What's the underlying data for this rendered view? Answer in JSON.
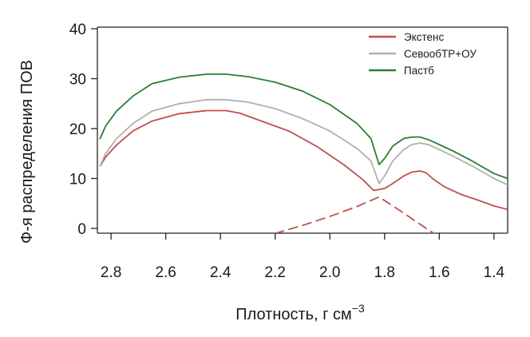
{
  "chart_data": {
    "type": "line",
    "xlabel": "Плотность, г см",
    "xlabel_exponent": "−3",
    "ylabel": "Ф-я распределения ПОВ",
    "xlim": [
      2.85,
      1.35
    ],
    "ylim": [
      0,
      40
    ],
    "x_reversed": true,
    "x_ticks": [
      "2.8",
      "2.6",
      "2.4",
      "2.2",
      "2.0",
      "1.8",
      "1.6",
      "1.4"
    ],
    "y_ticks": [
      "0",
      "10",
      "20",
      "30",
      "40"
    ],
    "grid": false,
    "legend_position": "top-right",
    "series": [
      {
        "name": "Экстенс",
        "color": "#c0504d",
        "x": [
          2.84,
          2.82,
          2.78,
          2.72,
          2.65,
          2.55,
          2.45,
          2.38,
          2.33,
          2.25,
          2.15,
          2.05,
          1.95,
          1.88,
          1.84,
          1.8,
          1.77,
          1.73,
          1.7,
          1.67,
          1.65,
          1.62,
          1.58,
          1.52,
          1.45,
          1.4,
          1.35
        ],
        "y": [
          12.5,
          14.3,
          16.7,
          19.5,
          21.5,
          23.0,
          23.6,
          23.6,
          23.1,
          21.5,
          19.5,
          16.5,
          12.8,
          9.8,
          7.6,
          8.0,
          9.0,
          10.5,
          11.3,
          11.5,
          11.2,
          9.8,
          8.3,
          6.8,
          5.5,
          4.5,
          3.8
        ]
      },
      {
        "name": "",
        "color": "#c0504d",
        "dashed": true,
        "x": [
          2.2,
          2.1,
          2.0,
          1.9,
          1.82,
          1.75,
          1.68,
          1.62
        ],
        "y": [
          -1.0,
          0.6,
          2.4,
          4.4,
          6.3,
          3.8,
          1.2,
          -1.0
        ]
      },
      {
        "name": "СевообТР+ОУ",
        "color": "#b0b0b0",
        "x": [
          2.84,
          2.82,
          2.78,
          2.72,
          2.65,
          2.55,
          2.45,
          2.38,
          2.3,
          2.2,
          2.1,
          2.0,
          1.9,
          1.85,
          1.82,
          1.8,
          1.77,
          1.73,
          1.7,
          1.67,
          1.64,
          1.6,
          1.55,
          1.48,
          1.4,
          1.35
        ],
        "y": [
          12.5,
          15.0,
          18.0,
          21.0,
          23.5,
          25.0,
          25.8,
          25.8,
          25.3,
          24.0,
          22.0,
          19.5,
          16.0,
          13.5,
          9.0,
          10.5,
          13.5,
          15.8,
          16.8,
          17.1,
          16.8,
          15.8,
          14.5,
          12.5,
          10.0,
          8.7
        ]
      },
      {
        "name": "Пастб",
        "color": "#2e7d32",
        "x": [
          2.84,
          2.82,
          2.78,
          2.72,
          2.65,
          2.55,
          2.45,
          2.38,
          2.3,
          2.2,
          2.1,
          2.0,
          1.9,
          1.85,
          1.82,
          1.8,
          1.77,
          1.73,
          1.7,
          1.67,
          1.64,
          1.6,
          1.55,
          1.48,
          1.4,
          1.35
        ],
        "y": [
          18.0,
          20.5,
          23.5,
          26.5,
          29.0,
          30.3,
          30.9,
          30.9,
          30.4,
          29.3,
          27.5,
          24.8,
          21.0,
          18.0,
          12.8,
          14.0,
          16.5,
          18.0,
          18.3,
          18.3,
          17.8,
          16.8,
          15.5,
          13.5,
          11.0,
          10.0
        ]
      }
    ]
  }
}
